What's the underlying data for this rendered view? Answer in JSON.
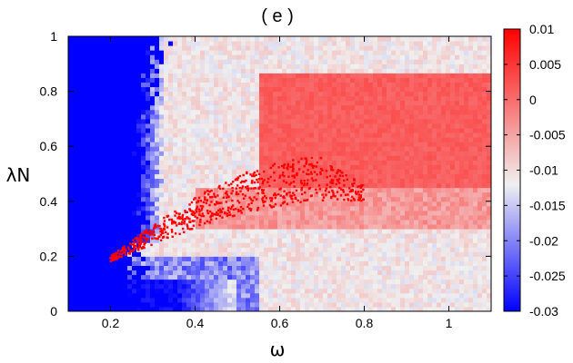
{
  "chart_data": {
    "type": "heatmap",
    "title": "( e )",
    "xlabel": "ω",
    "ylabel": "λN",
    "xlim": [
      0.1,
      1.1
    ],
    "ylim": [
      0,
      1
    ],
    "x_ticks": [
      0.2,
      0.4,
      0.6,
      0.8,
      1.0
    ],
    "x_tick_labels": [
      "0.2",
      "0.4",
      "0.6",
      "0.8",
      "1"
    ],
    "y_ticks": [
      0,
      0.2,
      0.4,
      0.6,
      0.8,
      1.0
    ],
    "y_tick_labels": [
      "0",
      "0.2",
      "0.4",
      "0.6",
      "0.8",
      "1"
    ],
    "colorbar": {
      "range": [
        -0.03,
        0.01
      ],
      "ticks": [
        0.01,
        0.005,
        0,
        -0.005,
        -0.01,
        -0.015,
        -0.02,
        -0.025,
        -0.03
      ],
      "tick_labels": [
        "0.01",
        "0.005",
        "0",
        "-0.005",
        "-0.01",
        "-0.015",
        "-0.02",
        "-0.025",
        "-0.03"
      ],
      "colors": {
        "low": "#0000ff",
        "mid": "#ffffff",
        "high": "#ff0000"
      }
    },
    "regions": [
      {
        "description": "saturated blue (value ≈ -0.03) for ω < ~0.3, all λN",
        "value": -0.03
      },
      {
        "description": "light red band (≈ 0.002) for ω 0.55–1.1, λN 0.45–0.85",
        "value": 0.002
      },
      {
        "description": "grey/white (≈ -0.01 to -0.015) elsewhere",
        "value": -0.012
      },
      {
        "description": "saturated red scattered points (value ≈ 0.01) inside crescent from ω≈0.2,λN≈0.18 to ω≈0.7,λN≈0.54",
        "value": 0.01
      }
    ],
    "grid": false,
    "legend": "colorbar-right"
  }
}
